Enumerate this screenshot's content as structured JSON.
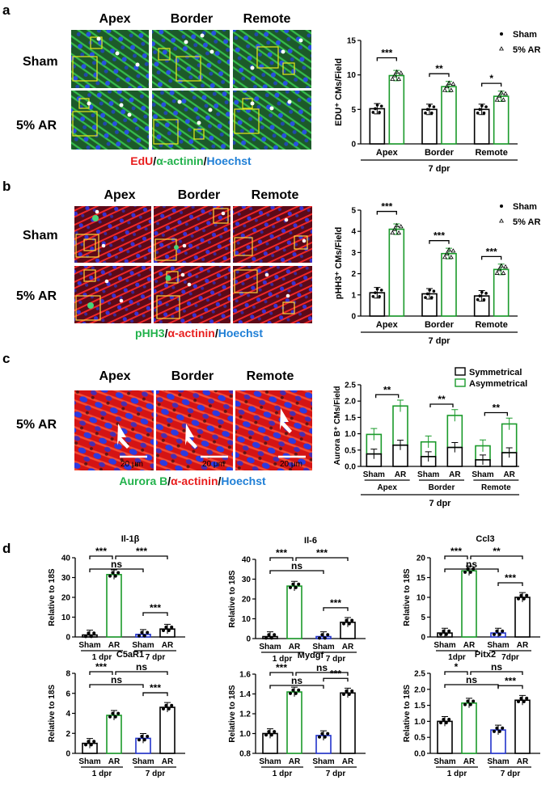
{
  "panel_a": {
    "label": "a",
    "columns": [
      "Apex",
      "Border",
      "Remote"
    ],
    "rows": [
      "Sham",
      "5% AR"
    ],
    "stain_caption": [
      "EdU",
      "/",
      "α-actinin",
      "/",
      "Hoechst"
    ]
  },
  "panel_b": {
    "label": "b",
    "columns": [
      "Apex",
      "Border",
      "Remote"
    ],
    "rows": [
      "Sham",
      "5% AR"
    ],
    "stain_caption": [
      "pHH3",
      "/",
      "α-actinin",
      "/",
      "Hoechst"
    ]
  },
  "panel_c": {
    "label": "c",
    "columns": [
      "Apex",
      "Border",
      "Remote"
    ],
    "rows": [
      "5% AR"
    ],
    "scale_bar": "20 μm",
    "stain_caption": [
      "Aurora B",
      "/",
      "α-actinin",
      "/",
      "Hoechst"
    ]
  },
  "panel_d": {
    "label": "d"
  },
  "colors": {
    "sham": "#000000",
    "ar": "#1a9a2a",
    "blue": "#2233cc",
    "red": "#e81e1e",
    "green": "#22b24c",
    "hoechst": "#1f7fd6"
  },
  "chart_data": [
    {
      "type": "bar",
      "id": "a-chart",
      "ylabel": "EDU⁺ CMs/Field",
      "categories": [
        "Apex",
        "Border",
        "Remote"
      ],
      "series": [
        {
          "name": "Sham",
          "values": [
            5.1,
            5.0,
            5.0
          ]
        },
        {
          "name": "5% AR",
          "values": [
            9.9,
            8.3,
            6.9
          ]
        }
      ],
      "ylim": [
        0,
        15
      ],
      "yticks": [
        0,
        5,
        10,
        15
      ],
      "significance": [
        "***",
        "**",
        "*"
      ],
      "footer": "7 dpr"
    },
    {
      "type": "bar",
      "id": "b-chart",
      "ylabel": "pHH3⁺ CMs/Field",
      "categories": [
        "Apex",
        "Border",
        "Remote"
      ],
      "series": [
        {
          "name": "Sham",
          "values": [
            1.1,
            1.05,
            0.95
          ]
        },
        {
          "name": "5% AR",
          "values": [
            4.1,
            2.95,
            2.2
          ]
        }
      ],
      "ylim": [
        0,
        5
      ],
      "yticks": [
        0,
        1,
        2,
        3,
        4,
        5
      ],
      "significance": [
        "***",
        "***",
        "***"
      ],
      "footer": "7 dpr"
    },
    {
      "type": "bar",
      "id": "c-chart",
      "stacked": true,
      "ylabel": "Aurora B⁺ CMs/Field",
      "groups": [
        "Apex",
        "Border",
        "Remote"
      ],
      "bar_labels": [
        "Sham",
        "AR",
        "Sham",
        "AR",
        "Sham",
        "AR"
      ],
      "series": [
        {
          "name": "Symmetrical",
          "values": [
            0.38,
            0.65,
            0.3,
            0.58,
            0.2,
            0.42
          ]
        },
        {
          "name": "Asymmetrical",
          "values": [
            0.6,
            1.2,
            0.45,
            0.98,
            0.43,
            0.88
          ]
        }
      ],
      "ylim": [
        0,
        2.5
      ],
      "yticks": [
        "0.0",
        "0.5",
        "1.0",
        "1.5",
        "2.0",
        "2.5"
      ],
      "significance": [
        "**",
        "**",
        "**"
      ],
      "footer": "7 dpr"
    },
    {
      "type": "bar",
      "id": "d1",
      "title": "Il-1β",
      "ylabel": "Relative to 18S",
      "bar_labels": [
        "Sham",
        "AR",
        "Sham",
        "AR"
      ],
      "groups": [
        "1 dpr",
        "7 dpr"
      ],
      "values": [
        1.0,
        31.5,
        1.3,
        4.0
      ],
      "ylim": [
        0,
        40
      ],
      "yticks": [
        0,
        10,
        20,
        30,
        40
      ],
      "comparisons": [
        "***",
        "ns",
        "***",
        "***"
      ]
    },
    {
      "type": "bar",
      "id": "d2",
      "title": "Il-6",
      "ylabel": "Relative to 18S",
      "bar_labels": [
        "Sham",
        "AR",
        "Sham",
        "AR"
      ],
      "groups": [
        "1 dpr",
        "7 dpr"
      ],
      "values": [
        1.0,
        26.5,
        1.0,
        8.2
      ],
      "ylim": [
        0,
        40
      ],
      "yticks": [
        0,
        10,
        20,
        30,
        40
      ],
      "comparisons": [
        "***",
        "ns",
        "***",
        "***"
      ]
    },
    {
      "type": "bar",
      "id": "d3",
      "title": "Ccl3",
      "ylabel": "Relative to 18S",
      "bar_labels": [
        "Sham",
        "AR",
        "Sham",
        "AR"
      ],
      "groups": [
        "1dpr",
        "7dpr"
      ],
      "values": [
        1.0,
        16.7,
        1.0,
        10.0
      ],
      "ylim": [
        0,
        20
      ],
      "yticks": [
        0,
        5,
        10,
        15,
        20
      ],
      "comparisons": [
        "***",
        "ns",
        "**",
        "***"
      ]
    },
    {
      "type": "bar",
      "id": "d4",
      "title": "C5aR1",
      "ylabel": "Relative to 18S",
      "bar_labels": [
        "Sham",
        "AR",
        "Sham",
        "AR"
      ],
      "groups": [
        "1 dpr",
        "7 dpr"
      ],
      "values": [
        1.0,
        3.8,
        1.5,
        4.6
      ],
      "ylim": [
        0,
        8
      ],
      "yticks": [
        0,
        2,
        4,
        6,
        8
      ],
      "comparisons": [
        "***",
        "ns",
        "ns",
        "***"
      ]
    },
    {
      "type": "bar",
      "id": "d5",
      "title": "Mydgf",
      "ylabel": "Relative to 18S",
      "bar_labels": [
        "Sham",
        "AR",
        "Sham",
        "AR"
      ],
      "groups": [
        "1 dpr",
        "7 dpr"
      ],
      "values": [
        1.0,
        1.42,
        0.98,
        1.41
      ],
      "ylim": [
        0.8,
        1.6
      ],
      "yticks": [
        "0.8",
        "1.0",
        "1.2",
        "1.4",
        "1.6"
      ],
      "comparisons": [
        "***",
        "ns",
        "ns",
        "***"
      ]
    },
    {
      "type": "bar",
      "id": "d6",
      "title": "Pitx2",
      "ylabel": "Relative to 18S",
      "bar_labels": [
        "Sham",
        "AR",
        "Sham",
        "AR"
      ],
      "groups": [
        "1 dpr",
        "7 dpr"
      ],
      "values": [
        1.0,
        1.57,
        0.73,
        1.66
      ],
      "ylim": [
        0,
        2.5
      ],
      "yticks": [
        "0.0",
        "0.5",
        "1.0",
        "1.5",
        "2.0",
        "2.5"
      ],
      "comparisons": [
        "*",
        "ns",
        "ns",
        "***"
      ]
    }
  ]
}
